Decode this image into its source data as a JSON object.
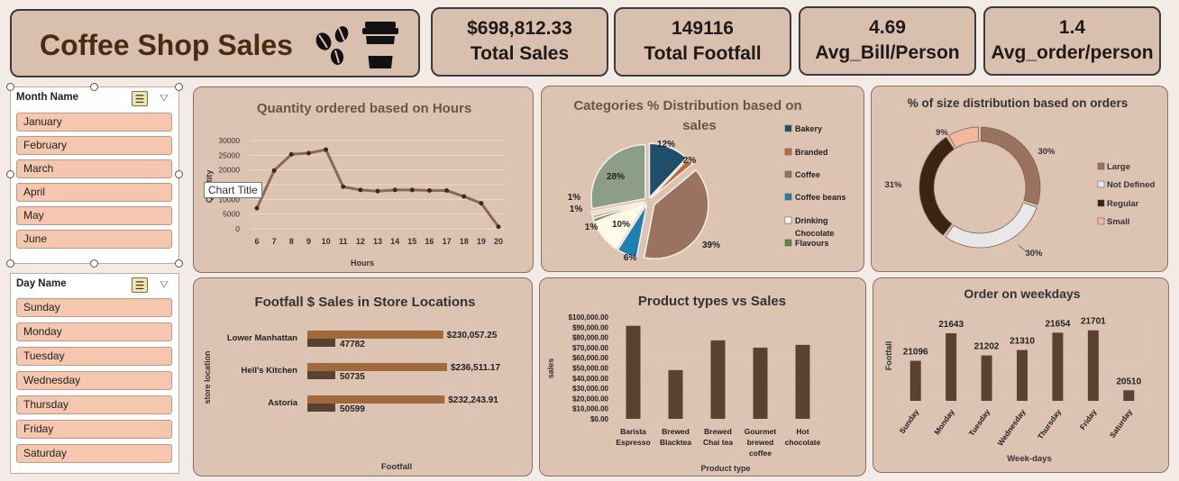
{
  "header": {
    "title": "Coffee Shop Sales",
    "icons": [
      "coffee-beans-icon",
      "coffee-cup-icon"
    ]
  },
  "kpis": [
    {
      "value": "$698,812.33",
      "label": "Total Sales"
    },
    {
      "value": "149116",
      "label": "Total Footfall"
    },
    {
      "value": "4.69",
      "label": "Avg_Bill/Person"
    },
    {
      "value": "1.4",
      "label": "Avg_order/person"
    }
  ],
  "month_slicer": {
    "title": "Month Name",
    "items": [
      "January",
      "February",
      "March",
      "April",
      "May",
      "June"
    ]
  },
  "day_slicer": {
    "title": "Day Name",
    "items": [
      "Sunday",
      "Monday",
      "Tuesday",
      "Wednesday",
      "Thursday",
      "Friday",
      "Saturday"
    ]
  },
  "tooltip": "Chart Title",
  "colors": {
    "card": "#d9bfae",
    "bar_dark": "#5a4230",
    "bar_light": "#a06a3c",
    "line": "#8a6a55"
  },
  "chart_data": [
    {
      "type": "line",
      "title": "Quantity ordered based on Hours",
      "xlabel": "Hours",
      "ylabel": "Quantity",
      "x": [
        6,
        7,
        8,
        9,
        10,
        11,
        12,
        13,
        14,
        15,
        16,
        17,
        18,
        19,
        20
      ],
      "values": [
        7000,
        19800,
        25300,
        25700,
        26900,
        14300,
        13200,
        12800,
        13200,
        13200,
        13000,
        13000,
        11000,
        8700,
        700
      ],
      "ylim": [
        0,
        30000
      ],
      "yticks": [
        "0",
        "5000",
        "10000",
        "15000",
        "20000",
        "25000",
        "30000"
      ],
      "grid": true
    },
    {
      "type": "pie",
      "title": "Categories % Distribution based on sales",
      "legend": [
        "Bakery",
        "Branded",
        "Coffee",
        "Coffee beans",
        "Drinking Chocolate",
        "Flavours"
      ],
      "slices": [
        {
          "name": "Bakery",
          "percent": 12,
          "label": "12%",
          "color": "#1f4e6b"
        },
        {
          "name": "Branded",
          "percent": 2,
          "label": "2%",
          "color": "#c0683a"
        },
        {
          "name": "Coffee",
          "percent": 39,
          "label": "39%",
          "color": "#9a7260"
        },
        {
          "name": "Coffee beans",
          "percent": 6,
          "label": "6%",
          "color": "#1e7fb0"
        },
        {
          "name": "Drinking Chocolate",
          "percent": 10,
          "label": "10%",
          "color": "#fffbe6"
        },
        {
          "name": "Flavours",
          "percent": 1,
          "label": "1%",
          "color": "#5a8a3a"
        },
        {
          "name": "",
          "percent": 1,
          "label": "1%",
          "color": "#c7b0a0"
        },
        {
          "name": "",
          "percent": 1,
          "label": "1%",
          "color": "#e6d2c2"
        },
        {
          "name": "",
          "percent": 28,
          "label": "28%",
          "color": "#8c9e88"
        }
      ],
      "legend_position": "right"
    },
    {
      "type": "pie",
      "title": "% of size distribution based on orders",
      "legend": [
        "Large",
        "Not Defined",
        "Regular",
        "Small"
      ],
      "slices": [
        {
          "name": "Large",
          "percent": 30,
          "label": "30%",
          "color": "#9a7260"
        },
        {
          "name": "Not Defined",
          "percent": 30,
          "label": "30%",
          "color": "#e8e8e8"
        },
        {
          "name": "Regular",
          "percent": 31,
          "label": "31%",
          "color": "#3a2414"
        },
        {
          "name": "Small",
          "percent": 9,
          "label": "9%",
          "color": "#f2b89c"
        }
      ],
      "legend_position": "right"
    },
    {
      "type": "bar",
      "title": "Footfall $ Sales in Store Locations",
      "xlabel": "Footfall",
      "ylabel": "store location",
      "categories": [
        "Lower Manhattan",
        "Hell's Kitchen",
        "Astoria"
      ],
      "series": [
        {
          "values": [
            230057.25,
            236511.17,
            232243.91
          ],
          "labels": [
            "$230,057.25",
            "$236,511.17",
            "$232,243.91"
          ]
        },
        {
          "values": [
            47782,
            50735,
            50599
          ],
          "labels": [
            "47782",
            "50735",
            "50599"
          ]
        }
      ]
    },
    {
      "type": "bar",
      "title": "Product types vs Sales",
      "xlabel": "Product type",
      "ylabel": "sales",
      "categories": [
        "Barista Espresso",
        "Brewed Blacktea",
        "Brewed Chai tea",
        "Gourmet brewed coffee",
        "Hot chocolate"
      ],
      "category_lines": [
        [
          "Barista",
          "Espresso"
        ],
        [
          "Brewed",
          "Blacktea"
        ],
        [
          "Brewed",
          "Chai tea"
        ],
        [
          "Gourmet",
          "brewed",
          "coffee"
        ],
        [
          "Hot",
          "chocolate"
        ]
      ],
      "values": [
        91400,
        47900,
        77100,
        70000,
        72700
      ],
      "ylim": [
        0,
        100000
      ],
      "yticks": [
        "$0.00",
        "$10,000.00",
        "$20,000.00",
        "$30,000.00",
        "$40,000.00",
        "$50,000.00",
        "$60,000.00",
        "$70,000.00",
        "$80,000.00",
        "$90,000.00",
        "$100,000.00"
      ],
      "grid": true
    },
    {
      "type": "bar",
      "title": "Order on weekdays",
      "xlabel": "Week-days",
      "ylabel": "Footfall",
      "categories": [
        "Sunday",
        "Monday",
        "Tuesday",
        "Wednesday",
        "Thursday",
        "Friday",
        "Saturday"
      ],
      "values": [
        21096,
        21643,
        21202,
        21310,
        21654,
        21701,
        20510
      ],
      "labels": [
        "21096",
        "21643",
        "21202",
        "21310",
        "21654",
        "21701",
        "20510"
      ],
      "ylim": [
        20300,
        21750
      ],
      "grid": true
    }
  ]
}
